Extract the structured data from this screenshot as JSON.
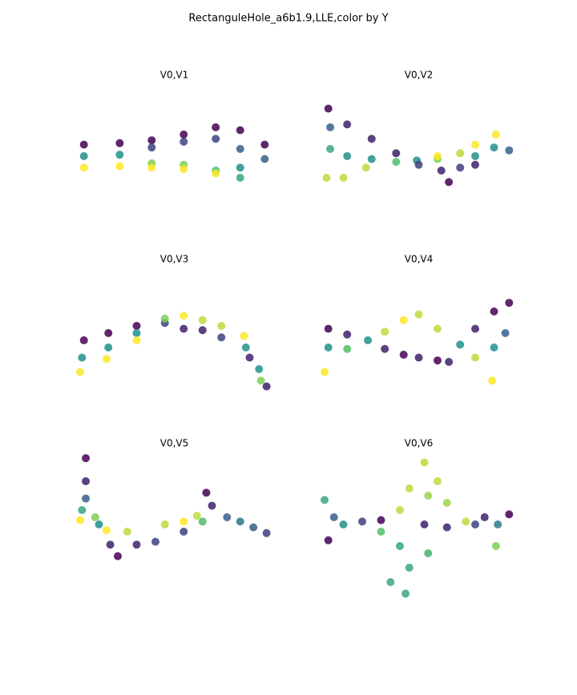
{
  "title": "RectanguleHole_a6b1.9,LLE,color by Y",
  "chart_data": [
    {
      "type": "scatter",
      "title": "V0,V1",
      "colormap": "viridis",
      "xlim": [
        0,
        100
      ],
      "ylim": [
        0,
        100
      ],
      "x": [
        2,
        2,
        2,
        21,
        21,
        21,
        38,
        38,
        38,
        38,
        55,
        55,
        55,
        55,
        72,
        72,
        72,
        72,
        85,
        85,
        85,
        85,
        98,
        98
      ],
      "y": [
        58,
        50,
        42,
        59,
        51,
        43,
        61,
        56,
        45,
        42,
        65,
        60,
        44,
        41,
        70,
        62,
        40,
        38,
        68,
        55,
        42,
        35,
        58,
        48
      ],
      "c": [
        0,
        0.5,
        1,
        0,
        0.5,
        1,
        0,
        0.2,
        0.8,
        1,
        0,
        0.2,
        0.8,
        1,
        0,
        0.2,
        0.7,
        1,
        0,
        0.3,
        0.5,
        0.6,
        0,
        0.3
      ]
    },
    {
      "type": "scatter",
      "title": "V0,V2",
      "colormap": "viridis",
      "xlim": [
        0,
        100
      ],
      "ylim": [
        0,
        100
      ],
      "x": [
        2,
        3,
        3,
        1,
        12,
        12,
        10,
        25,
        25,
        22,
        38,
        38,
        49,
        60,
        62,
        66,
        72,
        72,
        80,
        80,
        80,
        91,
        90,
        98,
        60,
        50
      ],
      "y": [
        83,
        70,
        55,
        35,
        72,
        50,
        35,
        62,
        48,
        42,
        52,
        46,
        47,
        48,
        40,
        32,
        52,
        42,
        58,
        50,
        44,
        65,
        56,
        54,
        50,
        44
      ],
      "c": [
        0,
        0.3,
        0.6,
        0.9,
        0.1,
        0.5,
        0.9,
        0.1,
        0.5,
        0.9,
        0.1,
        0.7,
        0.5,
        0.8,
        0.1,
        0,
        0.9,
        0.2,
        1,
        0.5,
        0.1,
        1,
        0.5,
        0.3,
        1,
        0.2
      ]
    },
    {
      "type": "scatter",
      "title": "V0,V3",
      "colormap": "viridis",
      "xlim": [
        0,
        100
      ],
      "ylim": [
        0,
        100
      ],
      "x": [
        2,
        1,
        0,
        15,
        15,
        14,
        30,
        30,
        30,
        45,
        45,
        55,
        55,
        65,
        65,
        75,
        75,
        87,
        88,
        90,
        95,
        99,
        96
      ],
      "y": [
        50,
        38,
        28,
        55,
        45,
        37,
        60,
        55,
        50,
        62,
        65,
        67,
        58,
        64,
        57,
        60,
        52,
        53,
        45,
        38,
        30,
        18,
        22
      ],
      "c": [
        0,
        0.5,
        1,
        0,
        0.5,
        1,
        0,
        0.5,
        1,
        0.2,
        0.8,
        1,
        0.1,
        0.9,
        0.1,
        0.9,
        0.2,
        1,
        0.5,
        0.1,
        0.5,
        0.1,
        0.8
      ]
    },
    {
      "type": "scatter",
      "title": "V0,V4",
      "colormap": "viridis",
      "xlim": [
        0,
        100
      ],
      "ylim": [
        0,
        100
      ],
      "x": [
        2,
        2,
        0,
        12,
        12,
        23,
        32,
        32,
        42,
        42,
        50,
        50,
        60,
        60,
        66,
        72,
        80,
        80,
        90,
        90,
        89,
        98,
        96
      ],
      "y": [
        58,
        45,
        28,
        54,
        44,
        50,
        56,
        44,
        64,
        40,
        68,
        38,
        58,
        36,
        35,
        47,
        58,
        38,
        70,
        45,
        22,
        76,
        55
      ],
      "c": [
        0,
        0.5,
        1,
        0.1,
        0.7,
        0.5,
        0.9,
        0.1,
        1,
        0,
        0.9,
        0.1,
        0.9,
        0,
        0.1,
        0.5,
        0.1,
        0.9,
        0,
        0.5,
        1,
        0,
        0.3
      ]
    },
    {
      "type": "scatter",
      "title": "V0,V5",
      "colormap": "viridis",
      "xlim": [
        0,
        100
      ],
      "ylim": [
        0,
        100
      ],
      "x": [
        3,
        3,
        3,
        1,
        0,
        8,
        10,
        14,
        16,
        20,
        25,
        30,
        40,
        45,
        55,
        55,
        65,
        67,
        70,
        78,
        85,
        92,
        99,
        62
      ],
      "y": [
        96,
        80,
        68,
        60,
        53,
        55,
        50,
        46,
        36,
        28,
        45,
        36,
        38,
        50,
        45,
        52,
        52,
        72,
        63,
        55,
        52,
        48,
        44,
        56
      ],
      "c": [
        0,
        0.1,
        0.3,
        0.6,
        1,
        0.8,
        0.5,
        1,
        0.1,
        0,
        0.9,
        0.1,
        0.2,
        0.9,
        0.2,
        1,
        0.7,
        0,
        0.1,
        0.3,
        0.4,
        0.3,
        0.2,
        0.9
      ]
    },
    {
      "type": "scatter",
      "title": "V0,V6",
      "colormap": "viridis",
      "xlim": [
        0,
        100
      ],
      "ylim": [
        0,
        100
      ],
      "x": [
        0,
        2,
        5,
        10,
        20,
        30,
        30,
        40,
        40,
        45,
        45,
        53,
        53,
        43,
        55,
        55,
        65,
        65,
        75,
        80,
        85,
        91,
        92,
        98,
        35,
        60
      ],
      "y": [
        67,
        39,
        55,
        50,
        52,
        53,
        45,
        60,
        35,
        75,
        20,
        93,
        50,
        2,
        70,
        30,
        65,
        48,
        52,
        50,
        55,
        35,
        50,
        57,
        10,
        80
      ],
      "c": [
        0.6,
        0,
        0.3,
        0.5,
        0.2,
        0,
        0.7,
        0.9,
        0.6,
        0.9,
        0.6,
        0.9,
        0.1,
        0.6,
        0.85,
        0.65,
        0.85,
        0.1,
        0.9,
        0.2,
        0.1,
        0.8,
        0.4,
        0,
        0.6,
        0.9
      ]
    }
  ]
}
